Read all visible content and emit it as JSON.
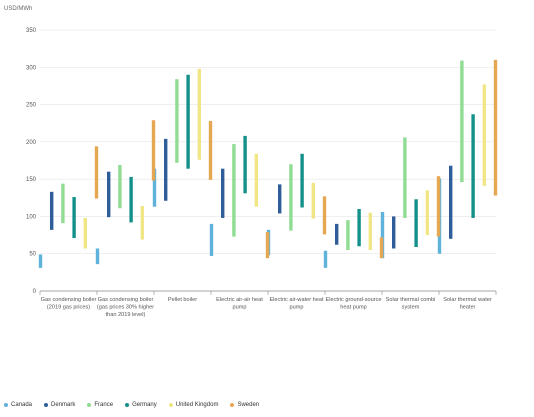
{
  "chart_data": {
    "type": "bar",
    "subtype": "floating-range",
    "ylabel": "USD/MWh",
    "ylim": [
      0,
      350
    ],
    "yticks": [
      0,
      50,
      100,
      150,
      200,
      250,
      300,
      350
    ],
    "grid": true,
    "legend_position": "bottom-left",
    "categories": [
      [
        "Gas condensing boiler",
        "(2019 gas prices)"
      ],
      [
        "Gas condensing boiler",
        "(gas prices 30% higher",
        "than 2019 level)"
      ],
      [
        "Pellet boiler"
      ],
      [
        "Electric air-air heat",
        "pump"
      ],
      [
        "Electric air-water heat",
        "pump"
      ],
      [
        "Electric ground-source",
        "heat pump"
      ],
      [
        "Solar thermal combi",
        "system"
      ],
      [
        "Solar thermal water",
        "heater"
      ]
    ],
    "series": [
      {
        "name": "Canada",
        "color": "#5fb3da",
        "ranges": [
          [
            31,
            49
          ],
          [
            36,
            57
          ],
          [
            113,
            164
          ],
          [
            47,
            90
          ],
          [
            48,
            82
          ],
          [
            31,
            54
          ],
          [
            44,
            106
          ],
          [
            50,
            151
          ]
        ]
      },
      {
        "name": "Denmark",
        "color": "#2f5d9a",
        "ranges": [
          [
            82,
            133
          ],
          [
            99,
            160
          ],
          [
            121,
            204
          ],
          [
            98,
            164
          ],
          [
            104,
            143
          ],
          [
            62,
            90
          ],
          [
            57,
            100
          ],
          [
            70,
            168
          ]
        ]
      },
      {
        "name": "France",
        "color": "#8fdc92",
        "ranges": [
          [
            91,
            144
          ],
          [
            111,
            169
          ],
          [
            172,
            284
          ],
          [
            73,
            197
          ],
          [
            81,
            170
          ],
          [
            55,
            95
          ],
          [
            98,
            206
          ],
          [
            146,
            309
          ]
        ]
      },
      {
        "name": "Germany",
        "color": "#14908a",
        "ranges": [
          [
            71,
            126
          ],
          [
            92,
            153
          ],
          [
            164,
            290
          ],
          [
            131,
            208
          ],
          [
            112,
            184
          ],
          [
            60,
            110
          ],
          [
            59,
            123
          ],
          [
            98,
            237
          ]
        ]
      },
      {
        "name": "United Kingdom",
        "color": "#f0e686",
        "ranges": [
          [
            57,
            98
          ],
          [
            69,
            114
          ],
          [
            176,
            298
          ],
          [
            113,
            184
          ],
          [
            97,
            145
          ],
          [
            55,
            105
          ],
          [
            75,
            135
          ],
          [
            141,
            277
          ]
        ]
      },
      {
        "name": "Sweden",
        "color": "#e6a753",
        "ranges": [
          [
            124,
            194
          ],
          [
            148,
            229
          ],
          [
            149,
            228
          ],
          [
            44,
            79
          ],
          [
            76,
            127
          ],
          [
            44,
            72
          ],
          [
            73,
            154
          ],
          [
            128,
            310
          ]
        ]
      }
    ]
  }
}
